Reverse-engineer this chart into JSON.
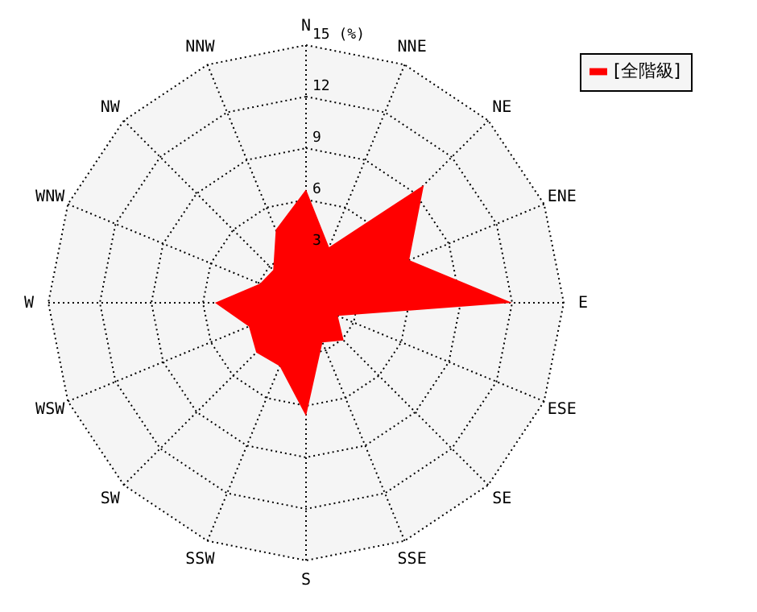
{
  "chart_data": {
    "type": "radar",
    "legend": "top right",
    "grid": true,
    "line_style": "dotted",
    "marker": "none",
    "categories": [
      "N",
      "NNE",
      "NE",
      "ENE",
      "E",
      "ESE",
      "SE",
      "SSE",
      "S",
      "SSW",
      "SW",
      "WSW",
      "W",
      "WNW",
      "NW",
      "NNW"
    ],
    "ylim": [
      0,
      15
    ],
    "yticks": [
      3,
      6,
      9,
      12,
      {
        "value": 15,
        "label": "15 (%)"
      }
    ],
    "series": [
      {
        "name": "[全階級]",
        "color": "#ff0000",
        "values": [
          6.6,
          3.5,
          9.7,
          6.5,
          12.0,
          2.0,
          3.1,
          2.5,
          6.6,
          4.0,
          4.1,
          3.6,
          5.3,
          2.9,
          2.7,
          4.6
        ]
      }
    ]
  }
}
